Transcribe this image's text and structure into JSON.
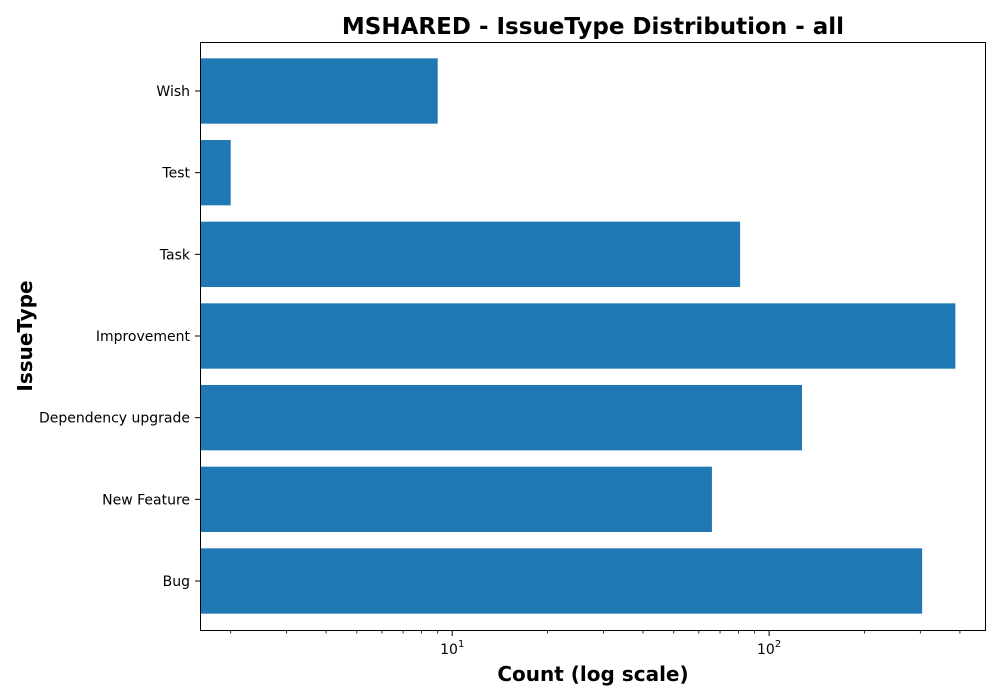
{
  "chart_data": {
    "type": "bar",
    "orientation": "horizontal",
    "title": "MSHARED - IssueType Distribution - all",
    "xlabel": "Count (log scale)",
    "ylabel": "IssueType",
    "x_scale": "log",
    "xlim": [
      1.6,
      480
    ],
    "x_major_ticks": [
      {
        "value": 10,
        "base": "10",
        "exponent": "1"
      },
      {
        "value": 100,
        "base": "10",
        "exponent": "2"
      }
    ],
    "categories": [
      "Bug",
      "New Feature",
      "Dependency upgrade",
      "Improvement",
      "Task",
      "Test",
      "Wish"
    ],
    "values": [
      304,
      66,
      127,
      387,
      81,
      2,
      9
    ],
    "bar_color": "#1f77b4",
    "grid": false,
    "legend": "none"
  }
}
